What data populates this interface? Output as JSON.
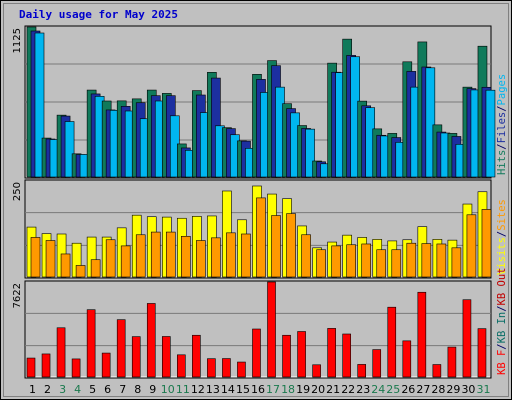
{
  "chart_data": {
    "type": "bar",
    "title": "Daily usage for May 2025",
    "categories": [
      "1",
      "2",
      "3",
      "4",
      "5",
      "6",
      "7",
      "8",
      "9",
      "10",
      "11",
      "12",
      "13",
      "14",
      "15",
      "16",
      "17",
      "18",
      "19",
      "20",
      "21",
      "22",
      "23",
      "24",
      "25",
      "26",
      "27",
      "28",
      "29",
      "30",
      "31"
    ],
    "weekend_categories": [
      "3",
      "4",
      "10",
      "11",
      "17",
      "18",
      "24",
      "25",
      "31"
    ],
    "colors": {
      "title": "#0000cc",
      "weekday_tick": "#000000",
      "weekend_tick": "#1b7a4e",
      "background": "#c0c0c0",
      "panel_bg": "#c0c0c0",
      "hits": "#107a5b",
      "files": "#1c2fa0",
      "pages": "#00b6f0",
      "visits": "#ffff00",
      "sites": "#ff9900",
      "kbout": "#c00000",
      "kbin": "#0a6e67",
      "kbf": "#ff0000",
      "slash": "#000066"
    },
    "panels": [
      {
        "name": "hits-files-pages",
        "ylim": [
          0,
          1125
        ],
        "ytick": "1125",
        "legend": [
          {
            "text": "Hits",
            "color": "#107a5b"
          },
          {
            "text": "/",
            "color": "#000066"
          },
          {
            "text": "Files",
            "color": "#1c2fa0"
          },
          {
            "text": "/",
            "color": "#000066"
          },
          {
            "text": "Pages",
            "color": "#00b6f0"
          }
        ],
        "series": [
          {
            "name": "Hits",
            "color": "#107a5b",
            "values": [
              1125,
              292,
              464,
              174,
              652,
              570,
              571,
              586,
              652,
              627,
              248,
              648,
              785,
              370,
              271,
              770,
              873,
              550,
              386,
              120,
              854,
              1034,
              569,
              361,
              327,
              864,
              1013,
              391,
              327,
              674,
              981
            ]
          },
          {
            "name": "Files",
            "color": "#1c2fa0",
            "values": [
              1095,
              285,
              457,
              168,
              623,
              503,
              530,
              557,
              610,
              610,
              218,
              615,
              742,
              363,
              269,
              732,
              835,
              513,
              364,
              114,
              786,
              912,
              534,
              313,
              296,
              792,
              825,
              337,
              304,
              663,
              673
            ]
          },
          {
            "name": "Pages",
            "color": "#00b6f0",
            "values": [
              1080,
              281,
              416,
              169,
              605,
              500,
              495,
              437,
              570,
              459,
              200,
              483,
              384,
              317,
              215,
              634,
              674,
              481,
              359,
              99,
              783,
              902,
              520,
              308,
              260,
              674,
              819,
              330,
              245,
              653,
              651
            ]
          }
        ]
      },
      {
        "name": "visits-sites",
        "ylim": [
          0,
          250
        ],
        "ytick": "250",
        "legend": [
          {
            "text": "Visits",
            "color": "#ffff00"
          },
          {
            "text": "/",
            "color": "#000066"
          },
          {
            "text": "Sites",
            "color": "#ff9900"
          }
        ],
        "series": [
          {
            "name": "Visits",
            "color": "#ffff00",
            "values": [
              130,
              113,
              112,
              88,
              104,
              104,
              128,
              161,
              157,
              156,
              153,
              158,
              159,
              224,
              149,
              237,
              216,
              204,
              133,
              76,
              91,
              109,
              103,
              98,
              94,
              97,
              131,
              98,
              96,
              190,
              222
            ]
          },
          {
            "name": "Sites",
            "color": "#ff9900",
            "values": [
              103,
              95,
              60,
              30,
              45,
              97,
              81,
              110,
              117,
              117,
              106,
              95,
              102,
              115,
              112,
              206,
              160,
              165,
              110,
              71,
              81,
              84,
              86,
              71,
              71,
              88,
              87,
              86,
              76,
              162,
              176
            ]
          }
        ]
      },
      {
        "name": "kb",
        "ylim": [
          0,
          7622
        ],
        "ytick": "7622",
        "legend": [
          {
            "text": "KB F",
            "color": "#ff0000"
          },
          {
            "text": "/",
            "color": "#000066"
          },
          {
            "text": "KB In",
            "color": "#0a6e67"
          },
          {
            "text": "/",
            "color": "#000066"
          },
          {
            "text": "KB Out",
            "color": "#c00000"
          }
        ],
        "series": [
          {
            "name": "KB F",
            "color": "#ff0000",
            "values": [
              1520,
              1850,
              3950,
              1450,
              5400,
              1920,
              4600,
              3240,
              5900,
              3250,
              1780,
              3350,
              1470,
              1480,
              1200,
              3850,
              7622,
              3350,
              3650,
              980,
              3900,
              3450,
              1010,
              2200,
              5600,
              2900,
              6800,
              1000,
              2400,
              6200,
              3880
            ]
          }
        ]
      }
    ]
  }
}
